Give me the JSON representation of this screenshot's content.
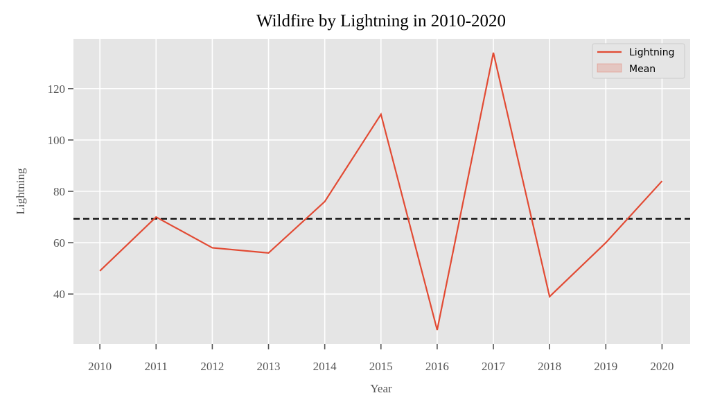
{
  "chart_data": {
    "type": "line",
    "title": "Wildfire by Lightning in 2010-2020",
    "xlabel": "Year",
    "ylabel": "Lightning",
    "x": [
      2010,
      2011,
      2012,
      2013,
      2014,
      2015,
      2016,
      2017,
      2018,
      2019,
      2020
    ],
    "series": [
      {
        "name": "Lightning",
        "values": [
          49,
          70,
          58,
          56,
          76,
          110,
          26,
          134,
          39,
          60,
          84
        ],
        "color": "#e24a33"
      }
    ],
    "mean": {
      "label": "Mean",
      "value": 69.3,
      "line_color": "#000000",
      "legend_color": "#e24a33"
    },
    "xlim": [
      2009.53,
      2020.5
    ],
    "ylim": [
      20.6,
      139.4
    ],
    "x_ticks": [
      2010,
      2011,
      2012,
      2013,
      2014,
      2015,
      2016,
      2017,
      2018,
      2019,
      2020
    ],
    "y_ticks": [
      40,
      60,
      80,
      100,
      120
    ],
    "grid": true,
    "legend_position": "top-right",
    "plot_background": "#e5e5e5"
  }
}
